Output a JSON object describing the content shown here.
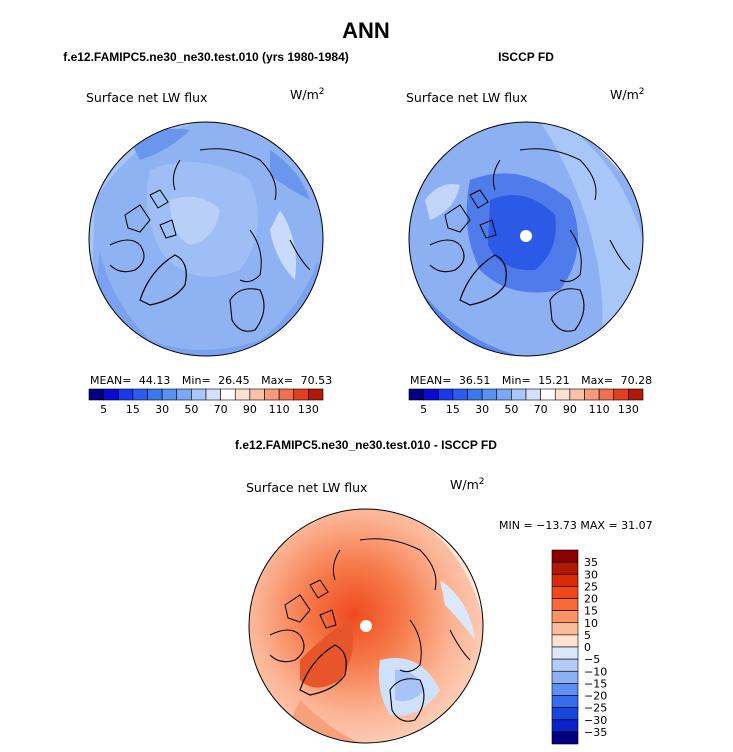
{
  "figure": {
    "title": "ANN",
    "units": "W/m",
    "units_exp": "2",
    "variable": "Surface net LW flux"
  },
  "panels": [
    {
      "id": "model",
      "header": "f.e12.FAMIPC5.ne30_ne30.test.010 (yrs 1980-1984)",
      "stats": {
        "mean_label": "MEAN=",
        "mean": "44.13",
        "min_label": "Min=",
        "min": "26.45",
        "max_label": "Max=",
        "max": "70.53"
      }
    },
    {
      "id": "obs",
      "header": "ISCCP FD",
      "stats": {
        "mean_label": "MEAN=",
        "mean": "36.51",
        "min_label": "Min=",
        "min": "15.21",
        "max_label": "Max=",
        "max": "70.28"
      }
    },
    {
      "id": "diff",
      "header": "f.e12.FAMIPC5.ne30_ne30.test.010 - ISCCP FD",
      "stats_text": "MIN = −13.73 MAX =  31.07"
    }
  ],
  "chart_data": [
    {
      "type": "heatmap",
      "projection": "north-polar-stereographic",
      "title": "Surface net LW flux",
      "colorbar": {
        "orientation": "horizontal",
        "levels": [
          5,
          10,
          15,
          20,
          30,
          40,
          50,
          60,
          70,
          80,
          90,
          100,
          110,
          120,
          130
        ],
        "tick_labels": [
          "5",
          "15",
          "30",
          "50",
          "70",
          "90",
          "110",
          "130"
        ],
        "colors": [
          "#000080",
          "#0a0ad0",
          "#1a3aea",
          "#2a5ef0",
          "#3a78f2",
          "#5a90f4",
          "#7aa8f6",
          "#a8c6f8",
          "#d2e2fa",
          "#ffffff",
          "#fde0cf",
          "#fbc0a8",
          "#f89a7a",
          "#f07050",
          "#e04020",
          "#b01808"
        ]
      },
      "mean": 44.13,
      "min": 26.45,
      "max": 70.53
    },
    {
      "type": "heatmap",
      "projection": "north-polar-stereographic",
      "title": "Surface net LW flux",
      "colorbar": {
        "orientation": "horizontal",
        "levels": [
          5,
          10,
          15,
          20,
          30,
          40,
          50,
          60,
          70,
          80,
          90,
          100,
          110,
          120,
          130
        ],
        "tick_labels": [
          "5",
          "15",
          "30",
          "50",
          "70",
          "90",
          "110",
          "130"
        ],
        "colors": [
          "#000080",
          "#0a0ad0",
          "#1a3aea",
          "#2a5ef0",
          "#3a78f2",
          "#5a90f4",
          "#7aa8f6",
          "#a8c6f8",
          "#d2e2fa",
          "#ffffff",
          "#fde0cf",
          "#fbc0a8",
          "#f89a7a",
          "#f07050",
          "#e04020",
          "#b01808"
        ]
      },
      "mean": 36.51,
      "min": 15.21,
      "max": 70.28
    },
    {
      "type": "heatmap",
      "projection": "north-polar-stereographic",
      "title": "Surface net LW flux",
      "colorbar": {
        "orientation": "vertical",
        "tick_labels": [
          "35",
          "30",
          "25",
          "20",
          "15",
          "10",
          "5",
          "0",
          "−5",
          "−10",
          "−15",
          "−20",
          "−25",
          "−30",
          "−35"
        ],
        "colors": [
          "#8b0000",
          "#b01808",
          "#d82a08",
          "#f04818",
          "#f86a38",
          "#fa9468",
          "#fbbc9c",
          "#fde2d0",
          "#dbe8fb",
          "#b4cdf8",
          "#8cb0f4",
          "#5e8ef0",
          "#3a6aee",
          "#1a46e0",
          "#0a22c8",
          "#000080"
        ]
      },
      "min": -13.73,
      "max": 31.07
    }
  ]
}
